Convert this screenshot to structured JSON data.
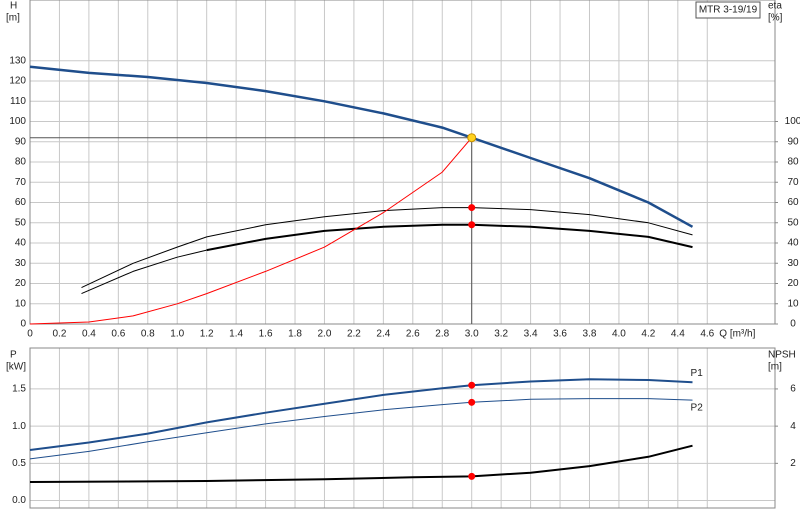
{
  "chart_data": [
    {
      "type": "line",
      "title": "MTR 3-19/19",
      "ylabel": "H",
      "yunit": "[m]",
      "y2label": "eta",
      "y2unit": "[%]",
      "xlabel": "Q [m³/h]",
      "xlim": [
        0,
        5.06
      ],
      "ylim": [
        0,
        160
      ],
      "y2lim": [
        0,
        160
      ],
      "xticks": [
        0,
        0.2,
        0.4,
        0.6,
        0.8,
        {
          "value": 1,
          "label": "1.0"
        },
        1.2,
        1.4,
        1.6,
        1.8,
        {
          "value": 2,
          "label": "2.0"
        },
        2.2,
        2.4,
        2.6,
        2.8,
        {
          "value": 3,
          "label": "3.0"
        },
        3.2,
        3.4,
        3.6,
        3.8,
        {
          "value": 4,
          "label": "4.0"
        },
        4.2,
        4.4,
        4.6
      ],
      "yticks": [
        0,
        10,
        20,
        30,
        40,
        50,
        60,
        70,
        80,
        90,
        100,
        110,
        120,
        130
      ],
      "y2ticks": [
        0,
        10,
        20,
        30,
        40,
        50,
        60,
        70,
        80,
        90,
        100
      ],
      "grid": true,
      "series": [
        {
          "color": "#1f4e8c",
          "width": 2.5,
          "axis": "y",
          "x": [
            0,
            0.4,
            0.8,
            1.2,
            1.6,
            2.0,
            2.4,
            2.8,
            3.0,
            3.4,
            3.8,
            4.2,
            4.5
          ],
          "values": [
            127,
            124,
            122,
            119,
            115,
            110,
            104,
            97,
            92,
            82,
            72,
            60,
            48
          ]
        },
        {
          "color": "#000000",
          "width": 1,
          "axis": "y2",
          "x": [
            0.35,
            0.7,
            1.0,
            1.2,
            1.6,
            2.0,
            2.4,
            2.8,
            3.0,
            3.4,
            3.8,
            4.2,
            4.5
          ],
          "values": [
            18,
            30,
            38,
            43,
            49,
            53,
            56,
            57.5,
            57.5,
            56.5,
            54,
            50,
            44
          ]
        },
        {
          "color": "#000000",
          "width": 1,
          "axis": "y2",
          "x": [
            0.35,
            0.7,
            1.0,
            1.2
          ],
          "values": [
            15,
            26,
            33,
            36.5
          ]
        },
        {
          "color": "#000000",
          "width": 2,
          "axis": "y2",
          "x": [
            1.2,
            1.6,
            2.0,
            2.4,
            2.8,
            3.0,
            3.4,
            3.8,
            4.2,
            4.5
          ],
          "values": [
            36.5,
            42,
            46,
            48,
            49,
            49,
            48,
            46,
            43,
            38
          ]
        },
        {
          "color": "#ff0000",
          "width": 1,
          "axis": "y",
          "x": [
            0,
            0.4,
            0.7,
            1.0,
            1.2,
            1.6,
            2.0,
            2.4,
            2.8,
            3.0
          ],
          "values": [
            0,
            1,
            4,
            10,
            15,
            26,
            38,
            55,
            75,
            92
          ]
        }
      ],
      "markers": [
        {
          "x": 3.0,
          "y": 92,
          "axis": "y",
          "color": "#ffd21f",
          "guide": true
        },
        {
          "x": 3.0,
          "y": 57.5,
          "axis": "y2",
          "color": "#ff0000"
        },
        {
          "x": 3.0,
          "y": 49,
          "axis": "y2",
          "color": "#ff0000"
        }
      ]
    },
    {
      "type": "line",
      "ylabel": "P",
      "yunit": "[kW]",
      "y2label": "NPSH",
      "y2unit": "[m]",
      "xlim": [
        0,
        5.06
      ],
      "ylim": [
        -0.1,
        2.05
      ],
      "y2lim": [
        -0.4,
        8.2
      ],
      "xticks": [
        0,
        0.2,
        0.4,
        0.6,
        0.8,
        1,
        1.2,
        1.4,
        1.6,
        1.8,
        2,
        2.2,
        2.4,
        2.6,
        2.8,
        3,
        3.2,
        3.4,
        3.6,
        3.8,
        4,
        4.2,
        4.4,
        4.6
      ],
      "yticks": [
        {
          "value": 0,
          "label": "0.0"
        },
        0.5,
        {
          "value": 1,
          "label": "1.0"
        },
        1.5
      ],
      "y2ticks": [
        2,
        4,
        6
      ],
      "grid": true,
      "series": [
        {
          "name": "P1",
          "color": "#1f4e8c",
          "width": 2,
          "axis": "y",
          "x": [
            0,
            0.4,
            0.8,
            1.2,
            1.6,
            2.0,
            2.4,
            2.8,
            3.0,
            3.4,
            3.8,
            4.2,
            4.5
          ],
          "values": [
            0.68,
            0.78,
            0.9,
            1.05,
            1.18,
            1.3,
            1.42,
            1.51,
            1.55,
            1.6,
            1.63,
            1.62,
            1.59
          ]
        },
        {
          "name": "P2",
          "color": "#1f4e8c",
          "width": 1,
          "axis": "y",
          "x": [
            0,
            0.4,
            0.8,
            1.2,
            1.6,
            2.0,
            2.4,
            2.8,
            3.0,
            3.4,
            3.8,
            4.2,
            4.5
          ],
          "values": [
            0.56,
            0.66,
            0.79,
            0.91,
            1.03,
            1.13,
            1.22,
            1.29,
            1.32,
            1.36,
            1.37,
            1.37,
            1.35
          ]
        },
        {
          "color": "#000000",
          "width": 2,
          "axis": "y2",
          "x": [
            0,
            1.2,
            2.0,
            2.6,
            3.0,
            3.4,
            3.8,
            4.2,
            4.5
          ],
          "values": [
            1.0,
            1.05,
            1.15,
            1.25,
            1.3,
            1.5,
            1.85,
            2.35,
            2.95
          ]
        }
      ],
      "markers": [
        {
          "x": 3.0,
          "y": 1.55,
          "axis": "y",
          "color": "#ff0000"
        },
        {
          "x": 3.0,
          "y": 1.32,
          "axis": "y",
          "color": "#ff0000"
        },
        {
          "x": 3.0,
          "y": 1.3,
          "axis": "y2",
          "color": "#ff0000"
        }
      ]
    }
  ]
}
